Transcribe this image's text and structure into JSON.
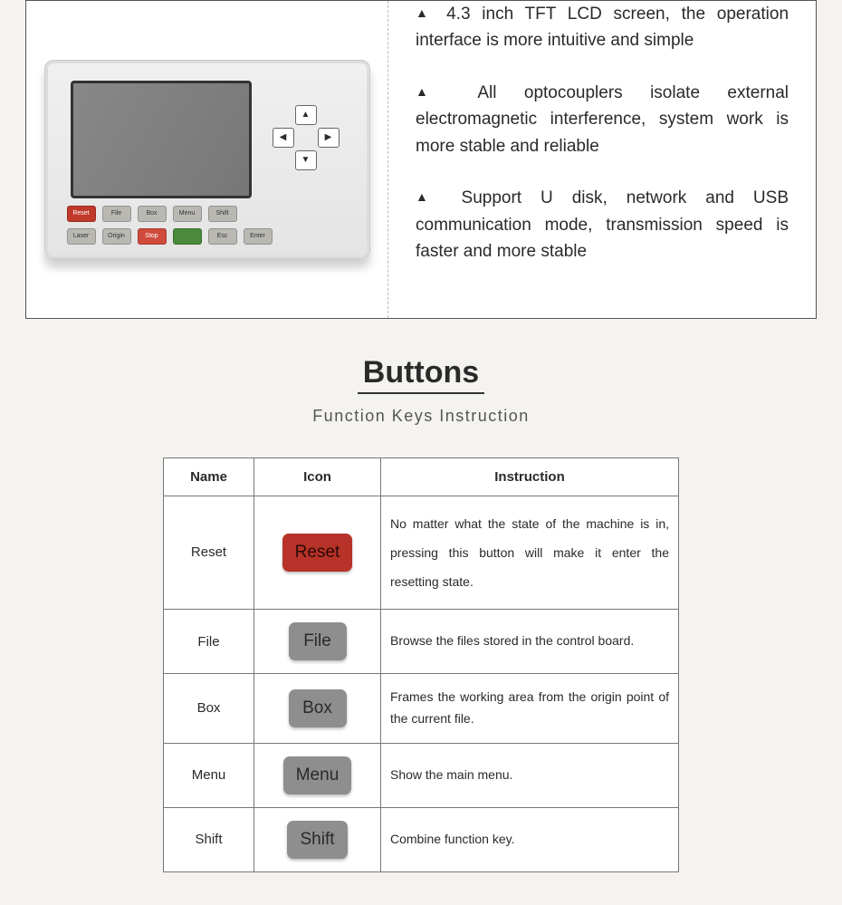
{
  "features": [
    "4.3 inch TFT LCD screen, the operation interface is more intuitive and simple",
    "All optocouplers isolate external electromagnetic interference, system work is more stable and reliable",
    "Support U disk, network and USB communication mode, transmission speed is faster and more stable"
  ],
  "section": {
    "title": "Buttons",
    "subtitle": "Function Keys Instruction"
  },
  "table": {
    "headers": {
      "name": "Name",
      "icon": "Icon",
      "instruction": "Instruction"
    },
    "rows": [
      {
        "name": "Reset",
        "icon_label": "Reset",
        "icon_color": "red",
        "instruction": "No matter what the state of the machine is in, pressing this button will make it enter the resetting state."
      },
      {
        "name": "File",
        "icon_label": "File",
        "icon_color": "grey",
        "instruction": "Browse the files stored in the control board."
      },
      {
        "name": "Box",
        "icon_label": "Box",
        "icon_color": "grey",
        "instruction": "Frames the working area from the origin point of the current file."
      },
      {
        "name": "Menu",
        "icon_label": "Menu",
        "icon_color": "grey",
        "instruction": "Show the main menu."
      },
      {
        "name": "Shift",
        "icon_label": "Shift",
        "icon_color": "grey",
        "instruction": "Combine function key."
      }
    ]
  },
  "device_keys": {
    "row1": [
      {
        "label": "Reset",
        "cls": "red"
      },
      {
        "label": "File",
        "cls": "grey"
      },
      {
        "label": "Box",
        "cls": "grey"
      },
      {
        "label": "Menu",
        "cls": "grey"
      },
      {
        "label": "Shift",
        "cls": "grey"
      }
    ],
    "row2": [
      {
        "label": "Laser",
        "cls": "grey"
      },
      {
        "label": "Origin",
        "cls": "grey"
      },
      {
        "label": "Stop",
        "cls": "red2"
      },
      {
        "label": "",
        "cls": "green"
      },
      {
        "label": "Esc",
        "cls": "grey"
      },
      {
        "label": "Enter",
        "cls": "grey"
      }
    ]
  },
  "colors": {
    "page_bg": "#f5f3ef",
    "border": "#555555",
    "btn_grey": "#8e8e8e",
    "btn_red": "#b73228"
  }
}
